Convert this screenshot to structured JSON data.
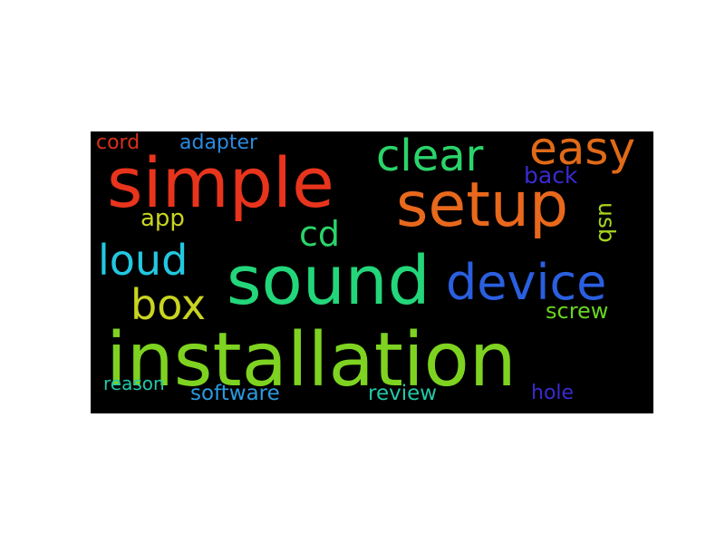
{
  "word_cloud": {
    "background_color": "#000000",
    "words": [
      {
        "text": "installation",
        "color": "#7ed321"
      },
      {
        "text": "sound",
        "color": "#23d67a"
      },
      {
        "text": "simple",
        "color": "#e8341c"
      },
      {
        "text": "setup",
        "color": "#e8681c"
      },
      {
        "text": "device",
        "color": "#2a5fe0"
      },
      {
        "text": "clear",
        "color": "#2bd46a"
      },
      {
        "text": "easy",
        "color": "#e06a18"
      },
      {
        "text": "loud",
        "color": "#22c8e0"
      },
      {
        "text": "box",
        "color": "#c8d420"
      },
      {
        "text": "cd",
        "color": "#2bd46a"
      },
      {
        "text": "app",
        "color": "#c8d420"
      },
      {
        "text": "back",
        "color": "#3a2ad0"
      },
      {
        "text": "usb",
        "color": "#a8d420"
      },
      {
        "text": "screw",
        "color": "#6ad420"
      },
      {
        "text": "cord",
        "color": "#d8301c"
      },
      {
        "text": "adapter",
        "color": "#2a8ae0"
      },
      {
        "text": "reason",
        "color": "#22c8a8"
      },
      {
        "text": "software",
        "color": "#2a9ae0"
      },
      {
        "text": "review",
        "color": "#22c8a8"
      },
      {
        "text": "hole",
        "color": "#3a2ad0"
      }
    ]
  }
}
